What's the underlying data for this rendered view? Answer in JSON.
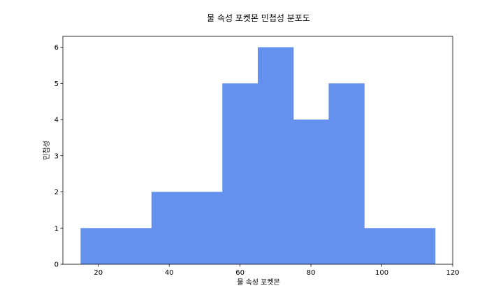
{
  "chart_data": {
    "type": "bar",
    "title": "물 속성 포켓몬 민첩성 분포도",
    "xlabel": "물 속성 포켓몬",
    "ylabel": "민첩성",
    "bins": [
      {
        "start": 15,
        "end": 25,
        "count": 1
      },
      {
        "start": 25,
        "end": 35,
        "count": 1
      },
      {
        "start": 35,
        "end": 45,
        "count": 2
      },
      {
        "start": 45,
        "end": 55,
        "count": 2
      },
      {
        "start": 55,
        "end": 65,
        "count": 5
      },
      {
        "start": 65,
        "end": 75,
        "count": 6
      },
      {
        "start": 75,
        "end": 85,
        "count": 4
      },
      {
        "start": 85,
        "end": 95,
        "count": 5
      },
      {
        "start": 95,
        "end": 105,
        "count": 1
      },
      {
        "start": 105,
        "end": 115,
        "count": 1
      }
    ],
    "xlim": [
      10,
      120
    ],
    "ylim": [
      0,
      6.3
    ],
    "xticks": [
      20,
      40,
      60,
      80,
      100,
      120
    ],
    "yticks": [
      0,
      1,
      2,
      3,
      4,
      5,
      6
    ],
    "bar_color": "#6490EE",
    "grid": false,
    "legend": false
  }
}
